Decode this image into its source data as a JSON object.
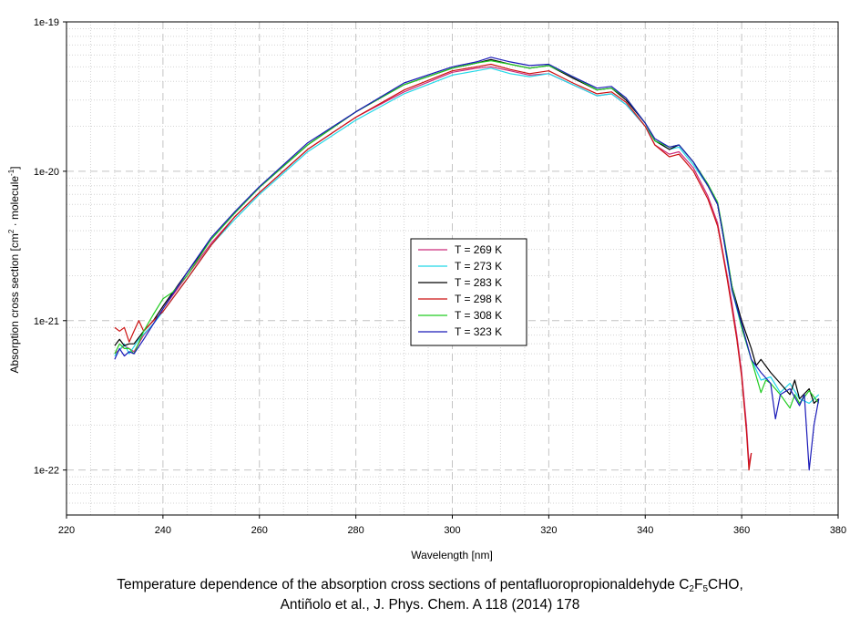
{
  "chart_data": {
    "type": "line",
    "xlabel": "Wavelength [nm]",
    "ylabel_parts": {
      "pre": "Absorption cross section [cm",
      "sup1": "2",
      "mid": " · molecule",
      "sup2": "-1",
      "post": "]"
    },
    "xlim": [
      220,
      380
    ],
    "ylim": [
      5e-23,
      1e-19
    ],
    "yscale": "log",
    "x_ticks": [
      "220",
      "240",
      "260",
      "280",
      "300",
      "320",
      "340",
      "360",
      "380"
    ],
    "y_ticks": [
      {
        "value": 1e-19,
        "label": "1e-19"
      },
      {
        "value": 1e-20,
        "label": "1e-20"
      },
      {
        "value": 1e-21,
        "label": "1e-21"
      },
      {
        "value": 1e-22,
        "label": "1e-22"
      }
    ],
    "grid": true,
    "legend_position": "center",
    "legend": [
      "T = 269 K",
      "T = 273 K",
      "T = 283 K",
      "T = 298 K",
      "T = 308 K",
      "T = 323 K"
    ],
    "series": [
      {
        "name": "T = 269 K",
        "color": "#cc2a7a",
        "x": [
          230,
          232,
          234,
          236,
          238,
          240,
          245,
          250,
          255,
          260,
          270,
          280,
          290,
          300,
          305,
          308,
          312,
          316,
          320,
          325,
          330,
          333,
          336,
          340,
          342,
          345,
          347,
          350,
          353,
          355,
          356,
          357,
          358,
          359,
          360,
          361,
          361.5,
          362
        ],
        "y": [
          6e-22,
          6.8e-22,
          6.2e-22,
          8e-22,
          9.5e-22,
          1.2e-21,
          2e-21,
          3.3e-21,
          5e-21,
          7.2e-21,
          1.4e-20,
          2.3e-20,
          3.4e-20,
          4.6e-20,
          4.9e-20,
          5e-20,
          4.7e-20,
          4.4e-20,
          4.5e-20,
          3.8e-20,
          3.2e-20,
          3.3e-20,
          2.8e-20,
          2e-20,
          1.5e-20,
          1.3e-20,
          1.35e-20,
          1.05e-20,
          6.8e-21,
          4.5e-21,
          3e-21,
          2e-21,
          1.3e-21,
          8e-22,
          4.5e-22,
          2e-22,
          1.1e-22,
          1.3e-22
        ]
      },
      {
        "name": "T = 273 K",
        "color": "#22d8e8",
        "x": [
          230,
          232,
          233,
          235,
          238,
          240,
          245,
          250,
          255,
          260,
          270,
          280,
          290,
          300,
          305,
          308,
          312,
          316,
          320,
          325,
          330,
          333,
          336,
          340,
          342,
          345,
          347,
          350,
          353,
          355,
          356,
          357,
          358,
          360,
          362,
          364,
          366,
          368,
          370,
          372,
          374,
          376
        ],
        "y": [
          5.8e-22,
          7e-22,
          6e-22,
          7.5e-22,
          9.5e-22,
          1.15e-21,
          1.9e-21,
          3.2e-21,
          4.8e-21,
          7e-21,
          1.35e-20,
          2.2e-20,
          3.3e-20,
          4.4e-20,
          4.7e-20,
          4.9e-20,
          4.5e-20,
          4.3e-20,
          4.5e-20,
          3.8e-20,
          3.2e-20,
          3.3e-20,
          2.8e-20,
          2e-20,
          1.6e-20,
          1.4e-20,
          1.45e-20,
          1.1e-20,
          8e-21,
          6e-21,
          4e-21,
          2.5e-21,
          1.6e-21,
          9e-22,
          5.5e-22,
          4e-22,
          4.2e-22,
          3.3e-22,
          3.8e-22,
          3e-22,
          2.8e-22,
          3.2e-22
        ]
      },
      {
        "name": "T = 283 K",
        "color": "#000000",
        "x": [
          230,
          231,
          232,
          233,
          234,
          236,
          238,
          240,
          245,
          250,
          255,
          260,
          270,
          280,
          290,
          300,
          305,
          308,
          312,
          316,
          320,
          325,
          330,
          333,
          336,
          340,
          342,
          345,
          347,
          350,
          353,
          355,
          356,
          357,
          358,
          360,
          362,
          363,
          364,
          366,
          368,
          370,
          371,
          372,
          374,
          375,
          376
        ],
        "y": [
          6.8e-22,
          7.5e-22,
          6.8e-22,
          7e-22,
          7e-22,
          8.5e-22,
          1e-21,
          1.25e-21,
          2.1e-21,
          3.5e-21,
          5.3e-21,
          7.8e-21,
          1.5e-20,
          2.5e-20,
          3.8e-20,
          4.9e-20,
          5.3e-20,
          5.6e-20,
          5.2e-20,
          4.9e-20,
          5.1e-20,
          4.2e-20,
          3.5e-20,
          3.6e-20,
          3e-20,
          2.1e-20,
          1.6e-20,
          1.4e-20,
          1.5e-20,
          1.15e-20,
          8e-21,
          6e-21,
          4e-21,
          2.6e-21,
          1.7e-21,
          1e-21,
          6.5e-22,
          5e-22,
          5.5e-22,
          4.5e-22,
          3.8e-22,
          3.2e-22,
          4e-22,
          3e-22,
          3.5e-22,
          2.8e-22,
          3e-22
        ]
      },
      {
        "name": "T = 298 K",
        "color": "#cc1111",
        "x": [
          230,
          231,
          232,
          233,
          234,
          235,
          236,
          238,
          240,
          245,
          250,
          255,
          260,
          270,
          280,
          290,
          300,
          305,
          308,
          312,
          316,
          320,
          325,
          330,
          333,
          336,
          340,
          342,
          345,
          347,
          350,
          353,
          355,
          356,
          357,
          358,
          359,
          360,
          361,
          361.5,
          362
        ],
        "y": [
          9e-22,
          8.5e-22,
          9e-22,
          7.2e-22,
          8.5e-22,
          1e-21,
          8.5e-22,
          1e-21,
          1.15e-21,
          1.9e-21,
          3.2e-21,
          5e-21,
          7.2e-21,
          1.4e-20,
          2.3e-20,
          3.5e-20,
          4.7e-20,
          5e-20,
          5.2e-20,
          4.8e-20,
          4.5e-20,
          4.7e-20,
          3.9e-20,
          3.3e-20,
          3.4e-20,
          2.9e-20,
          2e-20,
          1.5e-20,
          1.25e-20,
          1.3e-20,
          1e-20,
          6.5e-21,
          4.3e-21,
          2.9e-21,
          1.9e-21,
          1.2e-21,
          7.5e-22,
          4.2e-22,
          1.8e-22,
          1e-22,
          1.3e-22
        ]
      },
      {
        "name": "T = 308 K",
        "color": "#22cc22",
        "x": [
          230,
          231,
          232,
          233,
          234,
          236,
          238,
          240,
          242,
          245,
          250,
          255,
          260,
          270,
          280,
          290,
          300,
          305,
          308,
          312,
          316,
          320,
          325,
          330,
          333,
          336,
          340,
          342,
          345,
          347,
          350,
          353,
          355,
          356,
          357,
          358,
          360,
          362,
          364,
          365,
          366,
          368,
          370,
          371,
          372,
          374,
          376
        ],
        "y": [
          6e-22,
          7e-22,
          6.5e-22,
          6.5e-22,
          6e-22,
          8.5e-22,
          1.1e-21,
          1.4e-21,
          1.55e-21,
          2e-21,
          3.5e-21,
          5.3e-21,
          7.8e-21,
          1.5e-20,
          2.5e-20,
          3.8e-20,
          4.9e-20,
          5.3e-20,
          5.5e-20,
          5.2e-20,
          4.9e-20,
          5.1e-20,
          4.3e-20,
          3.5e-20,
          3.6e-20,
          3.1e-20,
          2.1e-20,
          1.6e-20,
          1.45e-20,
          1.5e-20,
          1.15e-20,
          8.2e-21,
          6.2e-21,
          4.2e-21,
          2.7e-21,
          1.7e-21,
          9e-22,
          5.5e-22,
          3.3e-22,
          4e-22,
          3.8e-22,
          3.2e-22,
          2.6e-22,
          3.2e-22,
          2.8e-22,
          3.4e-22,
          2.8e-22
        ]
      },
      {
        "name": "T = 323 K",
        "color": "#1a1ab8",
        "x": [
          230,
          231,
          232,
          233,
          234,
          236,
          238,
          240,
          245,
          250,
          255,
          260,
          270,
          280,
          290,
          300,
          305,
          308,
          312,
          316,
          320,
          325,
          330,
          333,
          336,
          340,
          342,
          345,
          347,
          350,
          353,
          355,
          356,
          357,
          358,
          360,
          362,
          364,
          366,
          367,
          368,
          370,
          372,
          373,
          374,
          375,
          376
        ],
        "y": [
          5.5e-22,
          6.5e-22,
          5.8e-22,
          6.2e-22,
          6e-22,
          7.5e-22,
          9.5e-22,
          1.2e-21,
          2.1e-21,
          3.6e-21,
          5.4e-21,
          7.9e-21,
          1.55e-20,
          2.5e-20,
          3.9e-20,
          5e-20,
          5.4e-20,
          5.8e-20,
          5.4e-20,
          5.1e-20,
          5.2e-20,
          4.3e-20,
          3.6e-20,
          3.7e-20,
          3.1e-20,
          2.1e-20,
          1.65e-20,
          1.45e-20,
          1.5e-20,
          1.15e-20,
          8e-21,
          6e-21,
          4e-21,
          2.6e-21,
          1.6e-21,
          9.5e-22,
          5.5e-22,
          4.5e-22,
          3.8e-22,
          2.2e-22,
          3.2e-22,
          3.5e-22,
          2.7e-22,
          3.2e-22,
          1e-22,
          2e-22,
          3e-22
        ]
      }
    ]
  },
  "caption": {
    "line1_pre": "Temperature dependence of the absorption cross sections of pentafluoropropionaldehyde C",
    "sub1": "2",
    "mid1": "F",
    "sub2": "5",
    "line1_post": "CHO,",
    "line2": "Antiñolo et al., J. Phys. Chem. A 118 (2014) 178"
  }
}
